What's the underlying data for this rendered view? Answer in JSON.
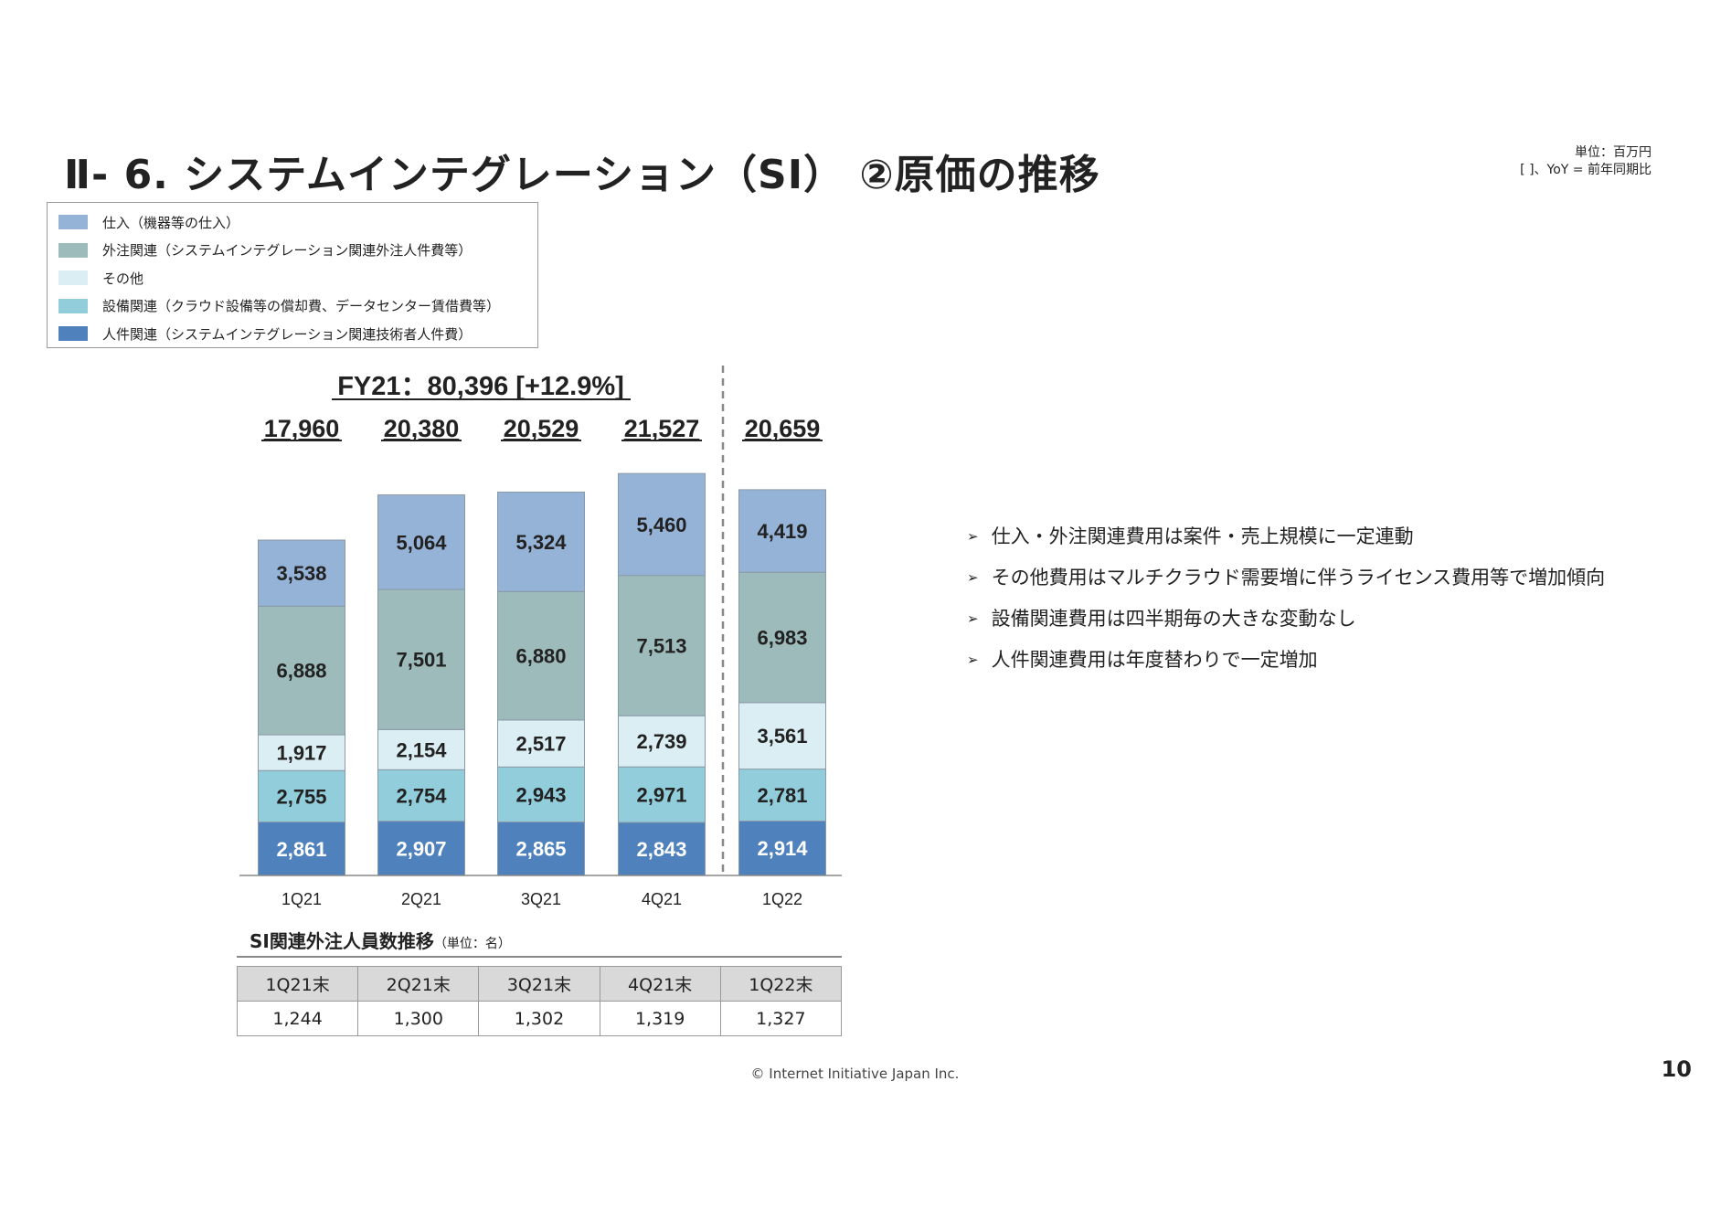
{
  "title": "Ⅱ- 6.  システムインテグレーション（SI） ②原価の推移",
  "notes": {
    "unit": "単位：百万円",
    "yoy": "[  ]、YoY = 前年同期比"
  },
  "chart_data": {
    "type": "bar",
    "stacked": true,
    "title": "FY21：80,396 [+12.9%]",
    "categories": [
      "1Q21",
      "2Q21",
      "3Q21",
      "4Q21",
      "1Q22"
    ],
    "totals": [
      "17,960",
      "20,380",
      "20,529",
      "21,527",
      "20,659"
    ],
    "series": [
      {
        "name": "人件関連（システムインテグレーション関連技術者人件費）",
        "color": "#4f81bd",
        "label_color": "#ffffff",
        "values": [
          2861,
          2907,
          2865,
          2843,
          2914
        ]
      },
      {
        "name": "設備関連（クラウド設備等の償却費、データセンター賃借費等）",
        "color": "#92cddc",
        "label_color": "#222222",
        "values": [
          2755,
          2754,
          2943,
          2971,
          2781
        ]
      },
      {
        "name": "その他",
        "color": "#dbeef3",
        "label_color": "#222222",
        "values": [
          1917,
          2154,
          2517,
          2739,
          3561
        ]
      },
      {
        "name": "外注関連（システムインテグレーション関連外注人件費等）",
        "color": "#9dbbbb",
        "label_color": "#222222",
        "values": [
          6888,
          7501,
          6880,
          7513,
          6983
        ]
      },
      {
        "name": "仕入（機器等の仕入）",
        "color": "#95b3d7",
        "label_color": "#222222",
        "values": [
          3538,
          5064,
          5324,
          5460,
          4419
        ]
      }
    ],
    "legend_order": [
      4,
      3,
      2,
      1,
      0
    ],
    "legend": "top-left",
    "ylim": [
      0,
      22000
    ]
  },
  "bullets": [
    "仕入・外注関連費用は案件・売上規模に一定連動",
    "その他費用はマルチクラウド需要増に伴うライセンス費用等で増加傾向",
    "設備関連費用は四半期毎の大きな変動なし",
    "人件関連費用は年度替わりで一定増加"
  ],
  "bullet_glyph": "➢",
  "si_table": {
    "title": "SI関連外注人員数推移",
    "unit": "（単位：名）",
    "headers": [
      "1Q21末",
      "2Q21末",
      "3Q21末",
      "4Q21末",
      "1Q22末"
    ],
    "values": [
      "1,244",
      "1,300",
      "1,302",
      "1,319",
      "1,327"
    ]
  },
  "footer": "© Internet Initiative Japan Inc.",
  "page_number": "10"
}
